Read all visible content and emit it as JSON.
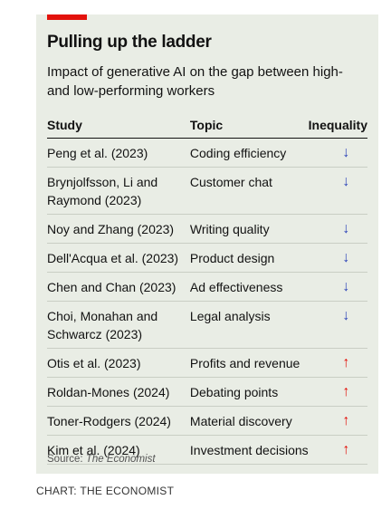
{
  "title": "Pulling up the ladder",
  "subtitle": "Impact of generative AI on the gap between high- and low-performing workers",
  "table": {
    "headers": [
      "Study",
      "Topic",
      "Inequality"
    ],
    "rows": [
      {
        "study": "Peng et al. (2023)",
        "topic": "Coding efficiency",
        "direction": "↓",
        "dir": "down"
      },
      {
        "study": "Brynjolfsson, Li and Raymond (2023)",
        "topic": "Customer chat",
        "direction": "↓",
        "dir": "down"
      },
      {
        "study": "Noy and Zhang (2023)",
        "topic": "Writing quality",
        "direction": "↓",
        "dir": "down"
      },
      {
        "study": "Dell'Acqua et al. (2023)",
        "topic": "Product design",
        "direction": "↓",
        "dir": "down"
      },
      {
        "study": "Chen and Chan (2023)",
        "topic": "Ad effectiveness",
        "direction": "↓",
        "dir": "down"
      },
      {
        "study": "Choi, Monahan and Schwarcz (2023)",
        "topic": "Legal analysis",
        "direction": "↓",
        "dir": "down"
      },
      {
        "study": "Otis et al. (2023)",
        "topic": "Profits and revenue",
        "direction": "↑",
        "dir": "up"
      },
      {
        "study": "Roldan-Mones (2024)",
        "topic": "Debating points",
        "direction": "↑",
        "dir": "up"
      },
      {
        "study": "Toner-Rodgers (2024)",
        "topic": "Material discovery",
        "direction": "↑",
        "dir": "up"
      },
      {
        "study": "Kim et al. (2024)",
        "topic": "Investment decisions",
        "direction": "↑",
        "dir": "up"
      }
    ]
  },
  "source_prefix": "Source: ",
  "source_name": "The Economist",
  "credit": "CHART: THE ECONOMIST",
  "colors": {
    "accent": "#e3120b",
    "down_arrow": "#2e45b8",
    "up_arrow": "#e3120b",
    "card_bg": "#e9ede5"
  }
}
